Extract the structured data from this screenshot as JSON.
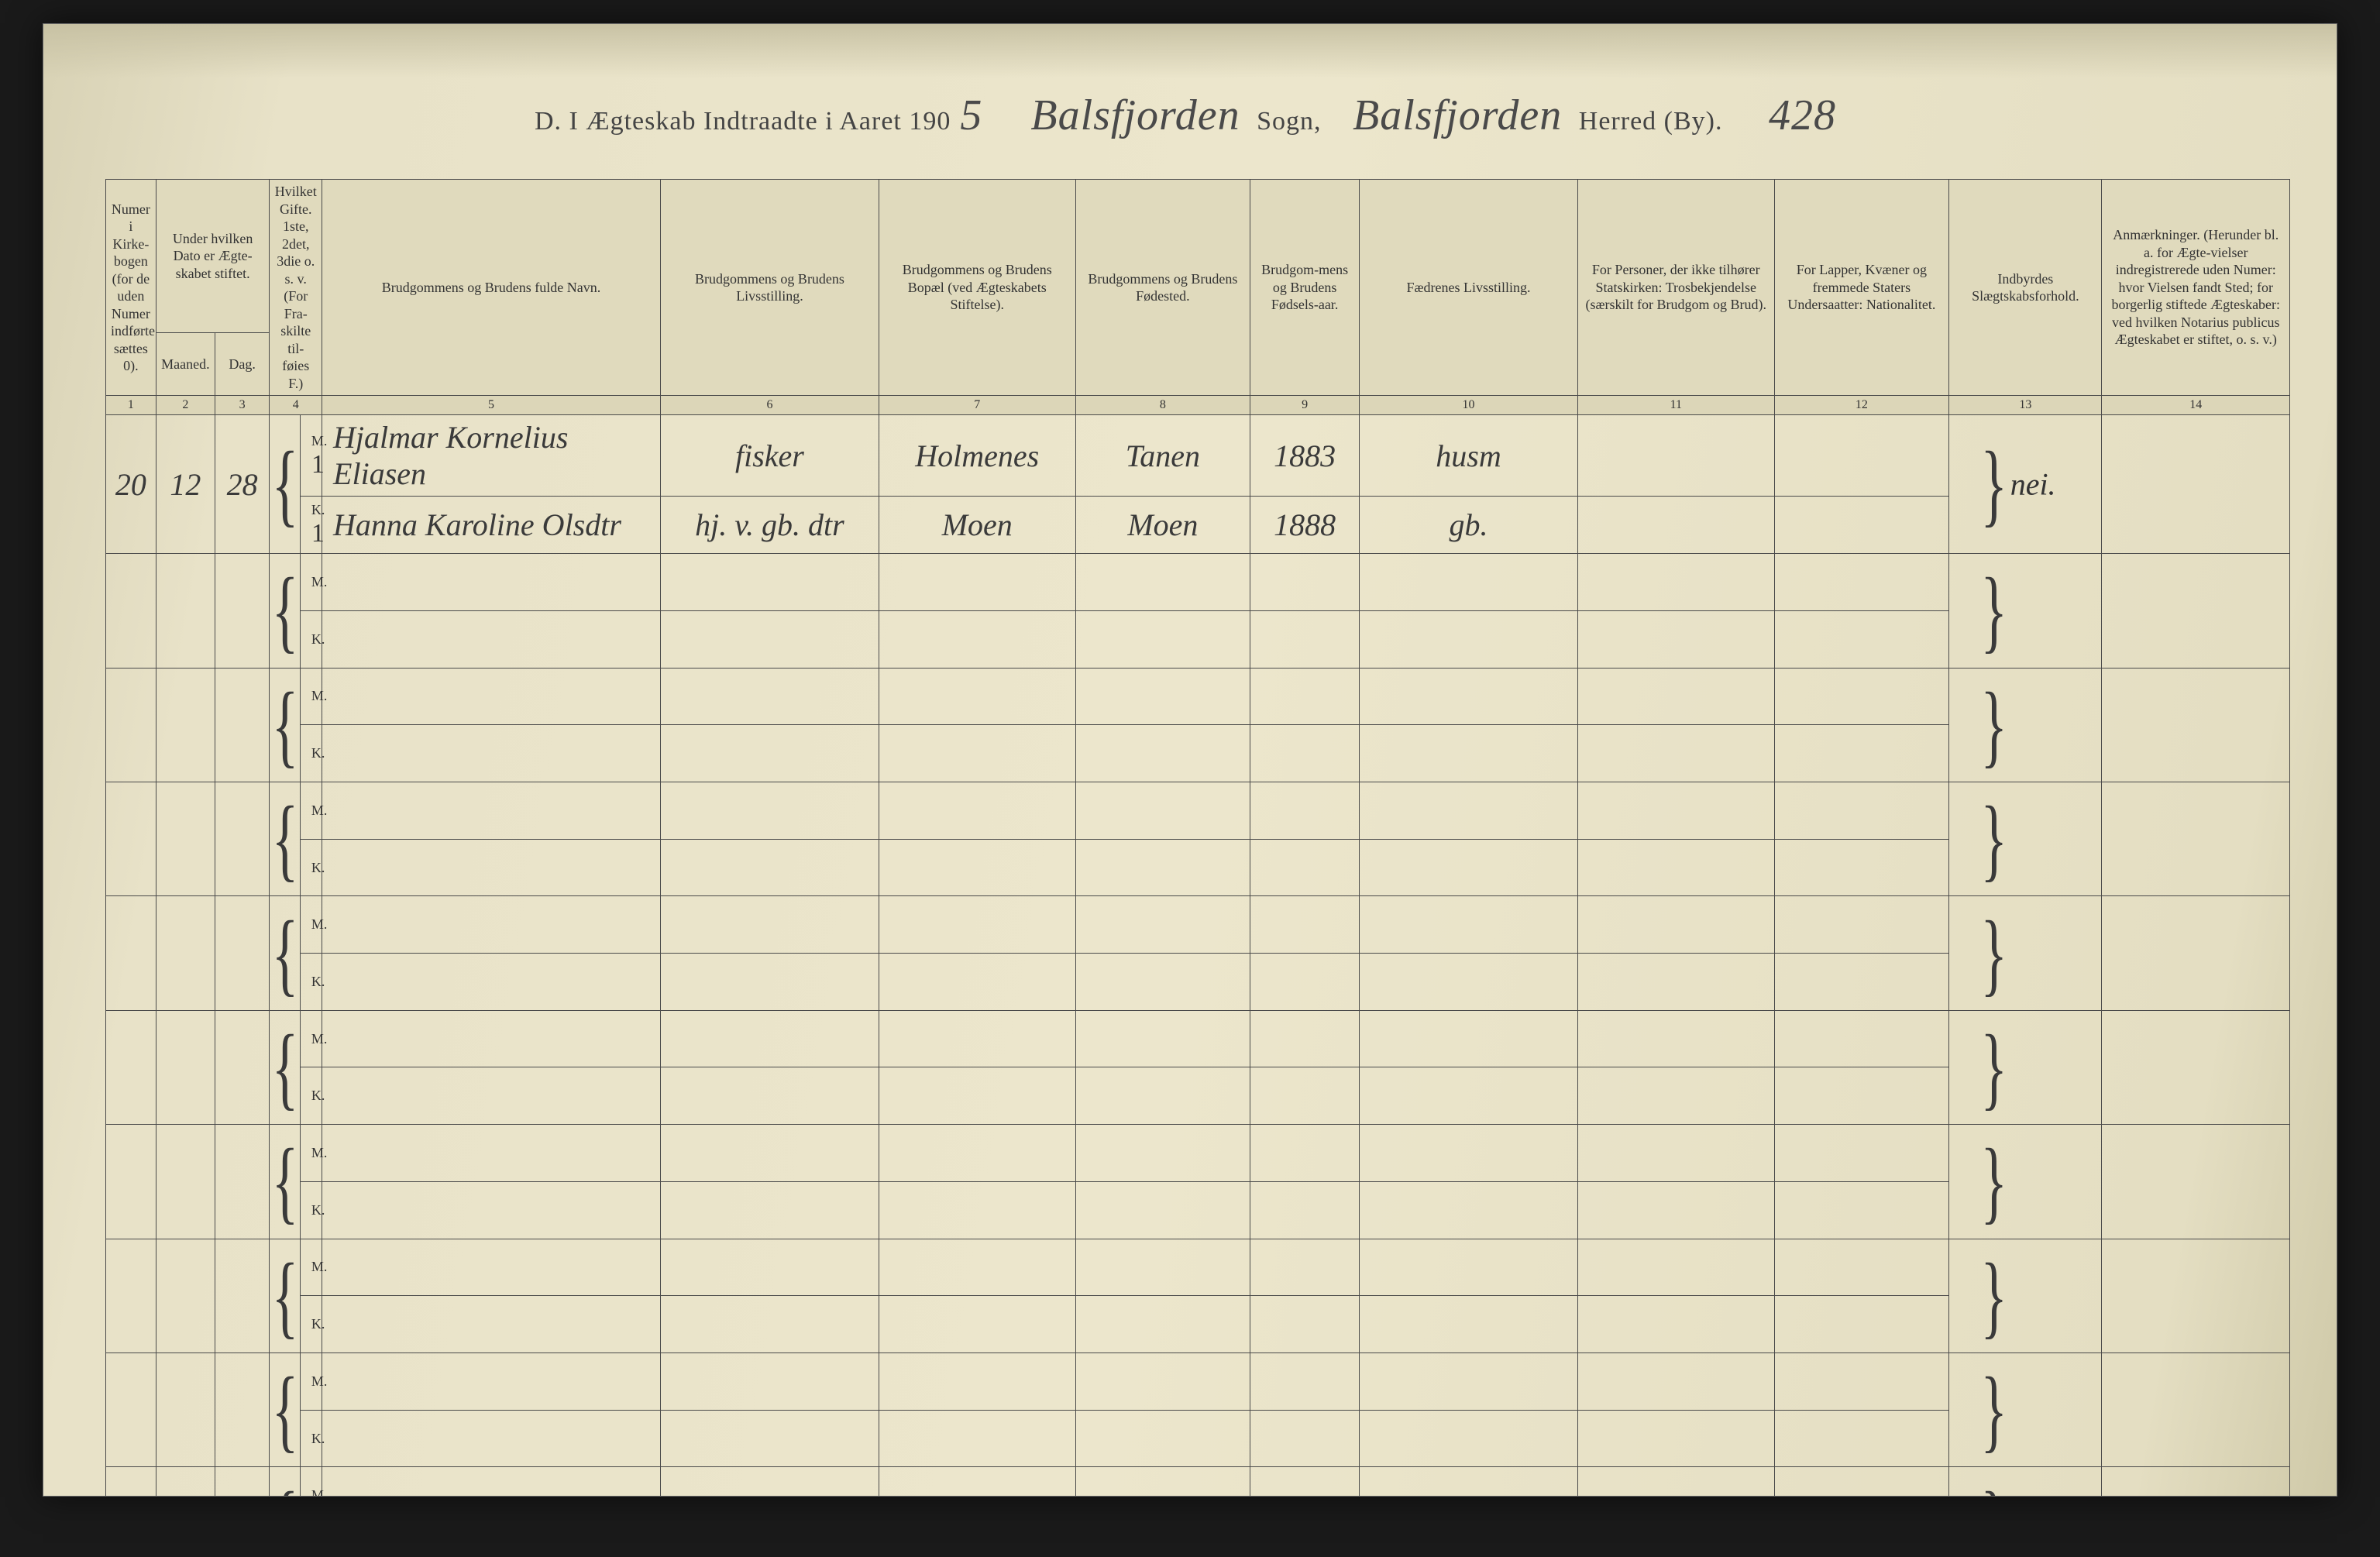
{
  "title": {
    "prefix": "D.   I Ægteskab Indtraadte i Aaret 190",
    "year_suffix": "5",
    "sogn_label": "Sogn,",
    "herred_label": "Herred (By).",
    "sogn_value": "Balsfjorden",
    "herred_value": "Balsfjorden",
    "page_no": "428"
  },
  "colors": {
    "paper": "#e8e2c8",
    "ink": "#3a3a3a",
    "rule": "#4a4a4a"
  },
  "headers": {
    "c1": "Numer i Kirke-bogen (for de uden Numer indførte sættes 0).",
    "c2_top": "Under hvilken Dato er Ægte-skabet stiftet.",
    "c2a": "Maaned.",
    "c2b": "Dag.",
    "c3": "Hvilket Gifte. 1ste, 2det, 3die o. s. v. (For Fra-skilte til-føies F.)",
    "c4": "Brudgommens og Brudens fulde Navn.",
    "c5": "Brudgommens og Brudens Livsstilling.",
    "c6": "Brudgommens og Brudens Bopæl (ved Ægteskabets Stiftelse).",
    "c7": "Brudgommens og Brudens Fødested.",
    "c8": "Brudgom-mens og Brudens Fødsels-aar.",
    "c9": "Fædrenes Livsstilling.",
    "c10": "For Personer, der ikke tilhører Statskirken: Trosbekjendelse (særskilt for Brudgom og Brud).",
    "c11": "For Lapper, Kvæner og fremmede Staters Undersaatter: Nationalitet.",
    "c12": "Indbyrdes Slægtskabsforhold.",
    "c13": "Anmærkninger. (Herunder bl. a. for Ægte-vielser indregistrerede uden Numer: hvor Vielsen fandt Sted; for borgerlig stiftede Ægteskaber: ved hvilken Notarius publicus Ægteskabet er stiftet, o. s. v.)"
  },
  "colnums": [
    "1",
    "2",
    "3",
    "4",
    "5",
    "6",
    "7",
    "8",
    "9",
    "10",
    "11",
    "12",
    "13",
    "14"
  ],
  "rows": [
    {
      "no": "20",
      "month": "12",
      "day": "28",
      "m": {
        "gifte": "1",
        "name": "Hjalmar Kornelius Eliasen",
        "occ": "fisker",
        "residence": "Holmenes",
        "birthplace": "Tanen",
        "birthyear": "1883",
        "father": "husm"
      },
      "k": {
        "gifte": "1",
        "name": "Hanna Karoline Olsdtr",
        "occ": "hj. v. gb. dtr",
        "residence": "Moen",
        "birthplace": "Moen",
        "birthyear": "1888",
        "father": "gb."
      },
      "kinship": "nei."
    }
  ],
  "blank_pairs": 9
}
